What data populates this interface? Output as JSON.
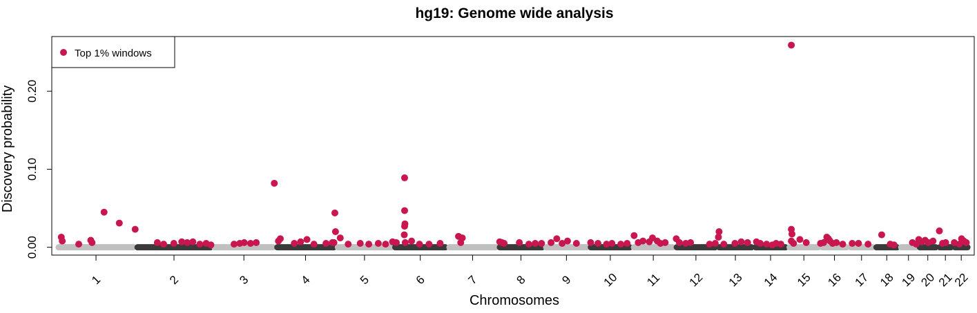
{
  "chart_data": {
    "type": "scatter",
    "title": "hg19: Genome wide analysis",
    "xlabel": "Chromosomes",
    "ylabel": "Discovery probability",
    "ylim": [
      -0.01,
      0.27
    ],
    "yticks": [
      "0.00",
      "0.10",
      "0.20"
    ],
    "ytick_values": [
      0.0,
      0.1,
      0.2
    ],
    "grid": false,
    "legend": {
      "position": "top-left",
      "entries": [
        {
          "label": "Top 1% windows",
          "color": "#c8174f"
        }
      ]
    },
    "colors": {
      "highlight": "#c8174f",
      "light": "#c0c0c0",
      "dark": "#3a3a3a",
      "axis": "#000000"
    },
    "chromosomes": [
      {
        "label": "1",
        "start": 0,
        "end": 249,
        "shade": "light"
      },
      {
        "label": "2",
        "start": 249,
        "end": 492,
        "shade": "dark"
      },
      {
        "label": "3",
        "start": 492,
        "end": 690,
        "shade": "light"
      },
      {
        "label": "4",
        "start": 690,
        "end": 881,
        "shade": "dark"
      },
      {
        "label": "5",
        "start": 881,
        "end": 1062,
        "shade": "light"
      },
      {
        "label": "6",
        "start": 1062,
        "end": 1233,
        "shade": "dark"
      },
      {
        "label": "7",
        "start": 1233,
        "end": 1392,
        "shade": "light"
      },
      {
        "label": "8",
        "start": 1392,
        "end": 1538,
        "shade": "dark"
      },
      {
        "label": "9",
        "start": 1538,
        "end": 1679,
        "shade": "light"
      },
      {
        "label": "10",
        "start": 1679,
        "end": 1815,
        "shade": "dark"
      },
      {
        "label": "11",
        "start": 1815,
        "end": 1950,
        "shade": "light"
      },
      {
        "label": "12",
        "start": 1950,
        "end": 2084,
        "shade": "dark"
      },
      {
        "label": "13",
        "start": 2084,
        "end": 2199,
        "shade": "dark"
      },
      {
        "label": "14",
        "start": 2199,
        "end": 2306,
        "shade": "dark"
      },
      {
        "label": "15",
        "start": 2306,
        "end": 2409,
        "shade": "light"
      },
      {
        "label": "16",
        "start": 2409,
        "end": 2499,
        "shade": "light"
      },
      {
        "label": "17",
        "start": 2499,
        "end": 2580,
        "shade": "light"
      },
      {
        "label": "18",
        "start": 2580,
        "end": 2658,
        "shade": "dark"
      },
      {
        "label": "19",
        "start": 2658,
        "end": 2717,
        "shade": "light"
      },
      {
        "label": "20",
        "start": 2717,
        "end": 2780,
        "shade": "dark"
      },
      {
        "label": "21",
        "start": 2780,
        "end": 2828,
        "shade": "dark"
      },
      {
        "label": "22",
        "start": 2828,
        "end": 2880,
        "shade": "dark"
      }
    ],
    "x_range": [
      -15,
      2895
    ],
    "series": [
      {
        "name": "Top 1% windows",
        "points": [
          [
            15,
            0.013
          ],
          [
            18,
            0.008
          ],
          [
            70,
            0.004
          ],
          [
            108,
            0.009
          ],
          [
            112,
            0.006
          ],
          [
            150,
            0.045
          ],
          [
            198,
            0.031
          ],
          [
            248,
            0.023
          ],
          [
            318,
            0.006
          ],
          [
            338,
            0.004
          ],
          [
            370,
            0.005
          ],
          [
            395,
            0.007
          ],
          [
            412,
            0.006
          ],
          [
            430,
            0.007
          ],
          [
            452,
            0.004
          ],
          [
            472,
            0.005
          ],
          [
            487,
            0.003
          ],
          [
            560,
            0.004
          ],
          [
            578,
            0.005
          ],
          [
            592,
            0.006
          ],
          [
            612,
            0.005
          ],
          [
            630,
            0.006
          ],
          [
            687,
            0.082
          ],
          [
            700,
            0.008
          ],
          [
            706,
            0.011
          ],
          [
            750,
            0.005
          ],
          [
            770,
            0.007
          ],
          [
            790,
            0.01
          ],
          [
            812,
            0.004
          ],
          [
            850,
            0.005
          ],
          [
            870,
            0.006
          ],
          [
            878,
            0.044
          ],
          [
            880,
            0.02
          ],
          [
            895,
            0.012
          ],
          [
            875,
            0.006
          ],
          [
            920,
            0.004
          ],
          [
            958,
            0.005
          ],
          [
            985,
            0.004
          ],
          [
            1015,
            0.005
          ],
          [
            1038,
            0.004
          ],
          [
            1060,
            0.007
          ],
          [
            1072,
            0.006
          ],
          [
            1098,
            0.089
          ],
          [
            1098,
            0.047
          ],
          [
            1099,
            0.03
          ],
          [
            1098,
            0.027
          ],
          [
            1097,
            0.016
          ],
          [
            1100,
            0.006
          ],
          [
            1120,
            0.008
          ],
          [
            1145,
            0.004
          ],
          [
            1175,
            0.004
          ],
          [
            1210,
            0.005
          ],
          [
            1268,
            0.014
          ],
          [
            1280,
            0.012
          ],
          [
            1275,
            0.006
          ],
          [
            1398,
            0.007
          ],
          [
            1405,
            0.006
          ],
          [
            1412,
            0.005
          ],
          [
            1460,
            0.006
          ],
          [
            1490,
            0.004
          ],
          [
            1510,
            0.005
          ],
          [
            1530,
            0.005
          ],
          [
            1560,
            0.006
          ],
          [
            1578,
            0.011
          ],
          [
            1595,
            0.005
          ],
          [
            1612,
            0.008
          ],
          [
            1640,
            0.005
          ],
          [
            1685,
            0.006
          ],
          [
            1708,
            0.005
          ],
          [
            1735,
            0.004
          ],
          [
            1752,
            0.005
          ],
          [
            1780,
            0.004
          ],
          [
            1800,
            0.005
          ],
          [
            1822,
            0.015
          ],
          [
            1835,
            0.006
          ],
          [
            1850,
            0.008
          ],
          [
            1870,
            0.007
          ],
          [
            1880,
            0.012
          ],
          [
            1895,
            0.008
          ],
          [
            1905,
            0.005
          ],
          [
            1920,
            0.006
          ],
          [
            1955,
            0.011
          ],
          [
            1965,
            0.006
          ],
          [
            1985,
            0.005
          ],
          [
            2000,
            0.006
          ],
          [
            2060,
            0.004
          ],
          [
            2078,
            0.005
          ],
          [
            2090,
            0.02
          ],
          [
            2088,
            0.013
          ],
          [
            2105,
            0.004
          ],
          [
            2140,
            0.005
          ],
          [
            2160,
            0.007
          ],
          [
            2180,
            0.006
          ],
          [
            2208,
            0.007
          ],
          [
            2220,
            0.005
          ],
          [
            2240,
            0.004
          ],
          [
            2258,
            0.003
          ],
          [
            2270,
            0.005
          ],
          [
            2285,
            0.004
          ],
          [
            2318,
            0.259
          ],
          [
            2318,
            0.023
          ],
          [
            2320,
            0.017
          ],
          [
            2318,
            0.008
          ],
          [
            2325,
            0.005
          ],
          [
            2345,
            0.01
          ],
          [
            2365,
            0.006
          ],
          [
            2410,
            0.005
          ],
          [
            2420,
            0.006
          ],
          [
            2430,
            0.013
          ],
          [
            2435,
            0.011
          ],
          [
            2440,
            0.008
          ],
          [
            2448,
            0.005
          ],
          [
            2460,
            0.006
          ],
          [
            2480,
            0.004
          ],
          [
            2510,
            0.005
          ],
          [
            2530,
            0.005
          ],
          [
            2560,
            0.004
          ],
          [
            2603,
            0.016
          ],
          [
            2630,
            0.004
          ],
          [
            2642,
            0.003
          ],
          [
            2700,
            0.006
          ],
          [
            2712,
            0.004
          ],
          [
            2720,
            0.01
          ],
          [
            2730,
            0.007
          ],
          [
            2740,
            0.009
          ],
          [
            2750,
            0.006
          ],
          [
            2765,
            0.008
          ],
          [
            2785,
            0.021
          ],
          [
            2795,
            0.005
          ],
          [
            2805,
            0.006
          ],
          [
            2832,
            0.006
          ],
          [
            2848,
            0.004
          ],
          [
            2855,
            0.011
          ],
          [
            2862,
            0.008
          ],
          [
            2870,
            0.006
          ]
        ]
      }
    ]
  }
}
